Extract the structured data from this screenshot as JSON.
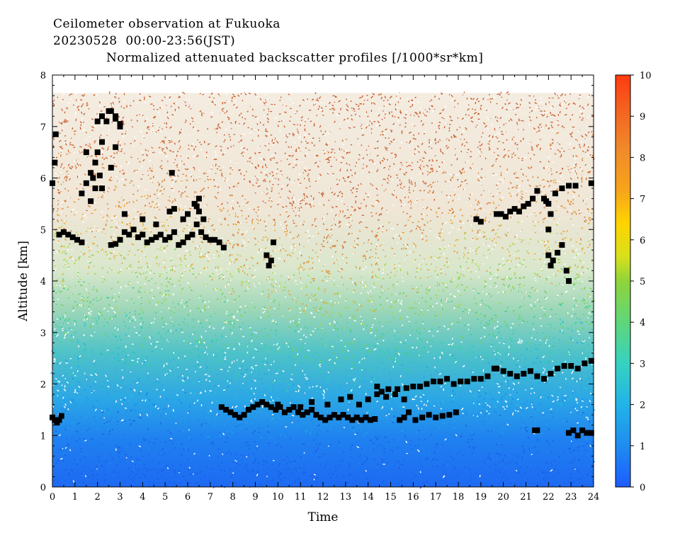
{
  "header": {
    "line1": "Ceilometer observation at Fukuoka",
    "line2": "20230528  00:00-23:56(JST)",
    "line3": "Normalized attenuated backscatter profiles [/1000*sr*km]"
  },
  "chart_data": {
    "type": "heatmap",
    "title": "Normalized attenuated backscatter profiles [/1000*sr*km]",
    "xlabel": "Time",
    "ylabel": "Altitude [km]",
    "xlim": [
      0,
      24
    ],
    "ylim": [
      0,
      8
    ],
    "x_ticks": [
      "0",
      "1",
      "2",
      "3",
      "4",
      "5",
      "6",
      "7",
      "8",
      "9",
      "10",
      "11",
      "12",
      "13",
      "14",
      "15",
      "16",
      "17",
      "18",
      "19",
      "20",
      "21",
      "22",
      "23",
      "24"
    ],
    "y_ticks": [
      "0",
      "1",
      "2",
      "3",
      "4",
      "5",
      "6",
      "7",
      "8"
    ],
    "colorbar": {
      "range": [
        0,
        10
      ],
      "ticks": [
        "0",
        "1",
        "2",
        "3",
        "4",
        "5",
        "6",
        "7",
        "8",
        "9",
        "10"
      ]
    },
    "data_top_km": 7.65,
    "cloud_base_markers": {
      "color": "#000000",
      "groups": [
        {
          "t": [
            0.0,
            0.1,
            0.2,
            0.3,
            0.4
          ],
          "alt": [
            1.35,
            1.3,
            1.25,
            1.3,
            1.38
          ]
        },
        {
          "t": [
            0.0,
            0.1,
            0.15
          ],
          "alt": [
            5.9,
            6.3,
            6.85
          ]
        },
        {
          "t": [
            0.3,
            0.5,
            0.7,
            0.9,
            1.1,
            1.3
          ],
          "alt": [
            4.9,
            4.95,
            4.9,
            4.85,
            4.8,
            4.75
          ]
        },
        {
          "t": [
            1.3,
            1.5,
            1.7,
            1.9,
            2.0,
            2.2,
            2.4,
            2.6,
            2.8,
            3.0
          ],
          "alt": [
            5.7,
            5.9,
            6.1,
            6.3,
            6.5,
            6.7,
            7.1,
            7.3,
            7.15,
            7.0
          ]
        },
        {
          "t": [
            2.0,
            2.2,
            2.5,
            2.8,
            3.0
          ],
          "alt": [
            7.1,
            7.2,
            7.3,
            7.2,
            7.05
          ]
        },
        {
          "t": [
            1.5,
            1.8,
            2.2,
            2.6,
            2.8
          ],
          "alt": [
            6.5,
            6.0,
            5.8,
            6.2,
            6.6
          ]
        },
        {
          "t": [
            1.7,
            1.9,
            2.1
          ],
          "alt": [
            5.55,
            5.8,
            6.05
          ]
        },
        {
          "t": [
            2.6,
            2.8,
            3.0,
            3.2,
            3.4,
            3.6,
            3.8,
            4.0,
            4.2,
            4.4,
            4.6,
            4.8,
            5.0,
            5.2,
            5.4,
            5.6,
            5.8,
            6.0,
            6.2,
            6.4,
            6.6,
            6.8,
            7.0,
            7.2,
            7.4,
            7.6
          ],
          "alt": [
            4.7,
            4.72,
            4.8,
            4.95,
            4.9,
            5.0,
            4.85,
            4.9,
            4.75,
            4.8,
            4.85,
            4.9,
            4.8,
            4.85,
            4.95,
            4.7,
            4.75,
            4.85,
            4.9,
            5.1,
            4.95,
            4.85,
            4.8,
            4.8,
            4.75,
            4.65
          ]
        },
        {
          "t": [
            3.2,
            4.0,
            4.6,
            5.2,
            5.4,
            5.8,
            6.0,
            6.3,
            6.5,
            6.7
          ],
          "alt": [
            5.3,
            5.2,
            5.1,
            5.35,
            5.4,
            5.2,
            5.3,
            5.5,
            5.35,
            5.2
          ]
        },
        {
          "t": [
            5.3,
            6.4,
            6.5
          ],
          "alt": [
            6.1,
            5.45,
            5.6
          ]
        },
        {
          "t": [
            9.5,
            9.6,
            9.7,
            9.8
          ],
          "alt": [
            4.5,
            4.3,
            4.4,
            4.75
          ]
        },
        {
          "t": [
            7.5,
            7.7,
            7.9,
            8.1,
            8.3,
            8.5,
            8.7,
            8.9,
            9.1,
            9.3,
            9.5,
            9.7,
            9.9,
            10.1,
            10.3,
            10.5,
            10.7,
            10.9,
            11.1,
            11.3,
            11.5,
            11.7,
            11.9,
            12.1,
            12.3,
            12.5,
            12.7,
            12.9,
            13.1,
            13.3,
            13.5,
            13.7,
            13.9,
            14.1,
            14.3
          ],
          "alt": [
            1.55,
            1.5,
            1.45,
            1.4,
            1.35,
            1.4,
            1.5,
            1.55,
            1.6,
            1.65,
            1.6,
            1.55,
            1.5,
            1.55,
            1.45,
            1.5,
            1.55,
            1.45,
            1.4,
            1.45,
            1.5,
            1.4,
            1.35,
            1.3,
            1.35,
            1.4,
            1.35,
            1.4,
            1.35,
            1.3,
            1.35,
            1.3,
            1.35,
            1.3,
            1.32
          ]
        },
        {
          "t": [
            10.0,
            11.0,
            11.5,
            12.2,
            12.8,
            13.2,
            13.6,
            14.0,
            14.4,
            14.8,
            15.2,
            15.6
          ],
          "alt": [
            1.6,
            1.55,
            1.65,
            1.6,
            1.7,
            1.75,
            1.6,
            1.7,
            1.8,
            1.75,
            1.8,
            1.7
          ]
        },
        {
          "t": [
            14.4,
            14.6,
            14.9,
            15.3,
            15.7,
            16.0,
            16.3,
            16.6,
            16.9,
            17.2,
            17.5,
            17.8,
            18.1,
            18.4,
            18.7,
            19.0,
            19.3,
            19.6
          ],
          "alt": [
            1.95,
            1.85,
            1.9,
            1.9,
            1.92,
            1.95,
            1.95,
            2.0,
            2.05,
            2.05,
            2.1,
            2.0,
            2.05,
            2.05,
            2.1,
            2.1,
            2.15,
            2.3
          ]
        },
        {
          "t": [
            15.4,
            15.6,
            15.8,
            16.1,
            16.4,
            16.7,
            17.0,
            17.3,
            17.6,
            17.9
          ],
          "alt": [
            1.3,
            1.35,
            1.45,
            1.3,
            1.35,
            1.4,
            1.35,
            1.38,
            1.4,
            1.45
          ]
        },
        {
          "t": [
            19.7,
            20.0,
            20.3,
            20.6,
            20.9,
            21.2,
            21.5,
            21.8,
            22.1,
            22.4,
            22.7,
            23.0,
            23.3,
            23.6,
            23.9
          ],
          "alt": [
            2.3,
            2.25,
            2.2,
            2.15,
            2.2,
            2.25,
            2.15,
            2.1,
            2.2,
            2.3,
            2.35,
            2.35,
            2.3,
            2.4,
            2.45
          ]
        },
        {
          "t": [
            21.4,
            21.5,
            22.9,
            23.1,
            23.3,
            23.5,
            23.7,
            23.9
          ],
          "alt": [
            1.1,
            1.1,
            1.05,
            1.1,
            1.0,
            1.1,
            1.05,
            1.05
          ]
        },
        {
          "t": [
            18.8,
            19.0,
            19.7,
            19.9,
            20.1,
            20.3,
            20.5,
            20.7,
            20.9,
            21.1,
            21.3,
            21.5,
            21.8,
            22.0,
            22.3,
            22.6,
            22.9,
            23.2,
            23.9
          ],
          "alt": [
            5.2,
            5.15,
            5.3,
            5.3,
            5.25,
            5.35,
            5.4,
            5.35,
            5.45,
            5.5,
            5.6,
            5.75,
            5.6,
            5.5,
            5.7,
            5.8,
            5.85,
            5.85,
            5.9
          ]
        },
        {
          "t": [
            22.0,
            22.1,
            22.2,
            22.4,
            22.6,
            22.8,
            22.9
          ],
          "alt": [
            4.5,
            4.3,
            4.4,
            4.55,
            4.7,
            4.2,
            4.0
          ]
        },
        {
          "t": [
            22.0,
            22.1,
            21.9
          ],
          "alt": [
            5.0,
            5.3,
            5.55
          ]
        }
      ]
    }
  }
}
